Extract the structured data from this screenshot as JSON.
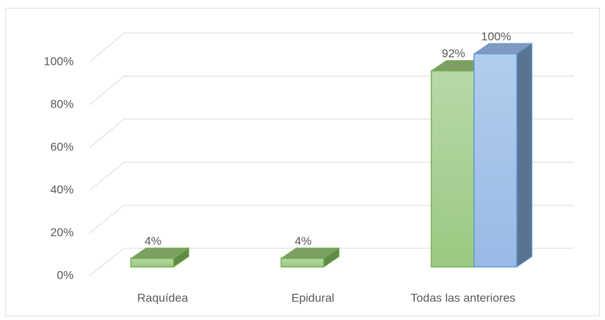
{
  "chart_data": {
    "type": "bar3d",
    "categories": [
      "Raquídea",
      "Epidural",
      "Todas las anteriores"
    ],
    "series": [
      {
        "color": "#70ad47",
        "values": [
          4,
          4,
          92
        ],
        "value_labels": [
          "4%",
          "4%",
          "92%"
        ]
      },
      {
        "color": "#5b9bd5",
        "values": [
          null,
          null,
          100
        ],
        "value_labels": [
          null,
          null,
          "100%"
        ]
      }
    ],
    "ylim": [
      0,
      100
    ],
    "yticks": [
      {
        "value": 0,
        "label": "0%"
      },
      {
        "value": 20,
        "label": "20%"
      },
      {
        "value": 40,
        "label": "40%"
      },
      {
        "value": 60,
        "label": "60%"
      },
      {
        "value": 80,
        "label": "80%"
      },
      {
        "value": 100,
        "label": "100%"
      }
    ],
    "grid": true
  }
}
